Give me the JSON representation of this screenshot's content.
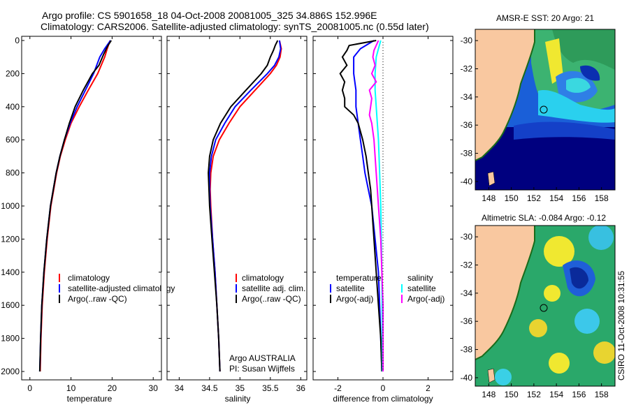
{
  "header": {
    "line1": "Argo profile: CS 5901658_18 04-Oct-2008 20081005_325 34.886S 152.996E",
    "line2": "Climatology: CARS2006. Satellite-adjusted climatology: synTS_20081005.nc (0.55d later)"
  },
  "colors": {
    "climatology": "#ff0000",
    "satellite": "#0000ff",
    "argo": "#000000",
    "cyan": "#00ffff",
    "magenta": "#ff00ff",
    "land": "#f9c8a0",
    "deep": "#00007f"
  },
  "chart_data": [
    {
      "type": "line",
      "id": "temperature",
      "title": "",
      "xlabel": "temperature",
      "ylabel": "",
      "xlim": [
        -2,
        32
      ],
      "ylim": [
        2080,
        0
      ],
      "xticks": [
        0,
        10,
        20,
        30
      ],
      "yticks": [
        0,
        200,
        400,
        600,
        800,
        1000,
        1200,
        1400,
        1600,
        1800,
        2000
      ],
      "legend": [
        "climatology",
        "satellite-adjusted climatology",
        "Argo(..raw -QC)"
      ],
      "series": [
        {
          "name": "climatology",
          "depth": [
            0,
            50,
            100,
            200,
            300,
            400,
            500,
            600,
            700,
            800,
            900,
            1000,
            1200,
            1400,
            1600,
            1800,
            2000
          ],
          "values": [
            19.5,
            18.8,
            18.2,
            16.5,
            14.2,
            12.0,
            10.0,
            8.6,
            7.4,
            6.5,
            5.8,
            5.1,
            4.2,
            3.5,
            3.0,
            2.7,
            2.5
          ]
        },
        {
          "name": "satellite-adjusted climatology",
          "depth": [
            0,
            50,
            100,
            200,
            300,
            400,
            500,
            600,
            700,
            800,
            900,
            1000,
            1200,
            1400,
            1600,
            1800,
            2000
          ],
          "values": [
            19.6,
            18.2,
            17.0,
            15.5,
            13.5,
            11.5,
            9.8,
            8.4,
            7.3,
            6.4,
            5.7,
            5.0,
            4.1,
            3.4,
            2.9,
            2.6,
            2.4
          ]
        },
        {
          "name": "Argo(..raw -QC)",
          "depth": [
            0,
            30,
            80,
            150,
            200,
            300,
            400,
            500,
            600,
            700,
            800,
            900,
            1000,
            1200,
            1400,
            1600,
            1800,
            2000
          ],
          "values": [
            19.8,
            19.0,
            18.0,
            16.8,
            15.2,
            13.0,
            11.0,
            9.6,
            8.4,
            7.3,
            6.4,
            5.7,
            5.0,
            4.1,
            3.4,
            2.9,
            2.6,
            2.4
          ]
        }
      ]
    },
    {
      "type": "line",
      "id": "salinity",
      "title": "",
      "xlabel": "salinity",
      "ylabel": "",
      "xlim": [
        33.8,
        36.1
      ],
      "ylim": [
        2080,
        0
      ],
      "xticks": [
        34,
        34.5,
        35,
        35.5,
        36
      ],
      "legend": [
        "climatology",
        "satellite adj. clim.",
        "Argo(..raw -QC)"
      ],
      "annotations": [
        "Argo AUSTRALIA",
        "PI: Susan Wijffels"
      ],
      "series": [
        {
          "name": "climatology",
          "depth": [
            0,
            50,
            100,
            150,
            200,
            300,
            400,
            500,
            600,
            700,
            800,
            900,
            1000,
            1200,
            1400,
            1600,
            1800,
            2000
          ],
          "values": [
            35.65,
            35.68,
            35.66,
            35.6,
            35.5,
            35.25,
            35.0,
            34.82,
            34.66,
            34.56,
            34.52,
            34.51,
            34.52,
            34.55,
            34.59,
            34.62,
            34.65,
            34.67
          ]
        },
        {
          "name": "satellite adj. clim.",
          "depth": [
            0,
            50,
            100,
            150,
            200,
            300,
            400,
            500,
            600,
            700,
            800,
            900,
            1000,
            1200,
            1400,
            1600,
            1800,
            2000
          ],
          "values": [
            35.65,
            35.67,
            35.64,
            35.57,
            35.45,
            35.18,
            34.92,
            34.75,
            34.6,
            34.53,
            34.5,
            34.5,
            34.51,
            34.55,
            34.59,
            34.62,
            34.65,
            34.67
          ]
        },
        {
          "name": "Argo(..raw -QC)",
          "depth": [
            0,
            30,
            60,
            100,
            150,
            200,
            300,
            400,
            500,
            600,
            700,
            800,
            900,
            1000,
            1200,
            1400,
            1600,
            1800,
            2000
          ],
          "values": [
            35.62,
            35.58,
            35.55,
            35.5,
            35.45,
            35.35,
            35.1,
            34.85,
            34.68,
            34.56,
            34.5,
            34.48,
            34.49,
            34.5,
            34.54,
            34.58,
            34.62,
            34.65,
            34.67
          ]
        }
      ]
    },
    {
      "type": "line",
      "id": "difference",
      "title": "",
      "xlabel": "difference from climatology",
      "xlim": [
        -3.1,
        3.1
      ],
      "ylim": [
        2080,
        0
      ],
      "xticks": [
        -2,
        0,
        2
      ],
      "legend": [
        "temperature",
        "satellite",
        "Argo(-adj)",
        "salinity",
        "satellite",
        "Argo(-adj)"
      ],
      "series": [
        {
          "name": "temperature satellite",
          "depth": [
            0,
            50,
            100,
            200,
            300,
            400,
            500,
            600,
            700,
            800,
            900,
            1000,
            1200,
            1400,
            1600,
            1800,
            2000
          ],
          "values": [
            -0.4,
            -1.0,
            -1.3,
            -1.3,
            -1.2,
            -1.2,
            -1.1,
            -1.0,
            -0.9,
            -0.8,
            -0.65,
            -0.5,
            -0.35,
            -0.2,
            -0.15,
            -0.1,
            -0.05
          ]
        },
        {
          "name": "temperature Argo(-adj)",
          "depth": [
            0,
            30,
            60,
            100,
            150,
            200,
            250,
            300,
            350,
            400,
            450,
            500,
            600,
            700,
            800,
            900,
            1000,
            1200,
            1400,
            1600,
            1800,
            2000
          ],
          "values": [
            -0.3,
            -1.5,
            -1.6,
            -1.8,
            -1.6,
            -1.9,
            -1.7,
            -1.8,
            -1.7,
            -1.7,
            -1.3,
            -1.1,
            -0.9,
            -0.75,
            -0.65,
            -0.55,
            -0.5,
            -0.4,
            -0.3,
            -0.2,
            -0.1,
            -0.05
          ]
        },
        {
          "name": "salinity satellite",
          "depth": [
            0,
            50,
            100,
            200,
            300,
            400,
            500,
            600,
            800,
            1000,
            1400,
            2000
          ],
          "values": [
            -0.1,
            -0.2,
            -0.3,
            -0.35,
            -0.35,
            -0.3,
            -0.25,
            -0.2,
            -0.15,
            -0.1,
            -0.05,
            -0.02
          ]
        },
        {
          "name": "salinity Argo(-adj)",
          "depth": [
            0,
            30,
            60,
            100,
            150,
            200,
            250,
            300,
            350,
            400,
            450,
            500,
            600,
            700,
            800,
            1000,
            1200,
            1400,
            1600,
            2000
          ],
          "values": [
            -0.2,
            -0.3,
            -0.4,
            -0.45,
            -0.35,
            -0.5,
            -0.3,
            -0.6,
            -0.5,
            -0.55,
            -0.6,
            -0.5,
            -0.4,
            -0.35,
            -0.3,
            -0.2,
            -0.1,
            -0.05,
            0.0,
            0.0
          ]
        }
      ]
    },
    {
      "type": "heatmap",
      "id": "sst-map",
      "title": "AMSR-E SST: 20 Argo: 21",
      "xlim": [
        146.8,
        159.2
      ],
      "ylim": [
        -40.6,
        -29.2
      ],
      "xticks": [
        148,
        150,
        152,
        154,
        156,
        158
      ],
      "yticks": [
        -30,
        -32,
        -34,
        -36,
        -38,
        -40
      ],
      "float_position": {
        "lon": 152.996,
        "lat": -34.886
      }
    },
    {
      "type": "heatmap",
      "id": "sla-map",
      "title": "Altimetric SLA: -0.084 Argo: -0.12",
      "xlim": [
        146.8,
        159.2
      ],
      "ylim": [
        -40.6,
        -29.2
      ],
      "xticks": [
        148,
        150,
        152,
        154,
        156,
        158
      ],
      "yticks": [
        -30,
        -32,
        -34,
        -36,
        -38,
        -40
      ],
      "float_position": {
        "lon": 152.996,
        "lat": -34.886
      }
    }
  ],
  "stamp": "CSIRO 11-Oct-2008 10:31:55"
}
